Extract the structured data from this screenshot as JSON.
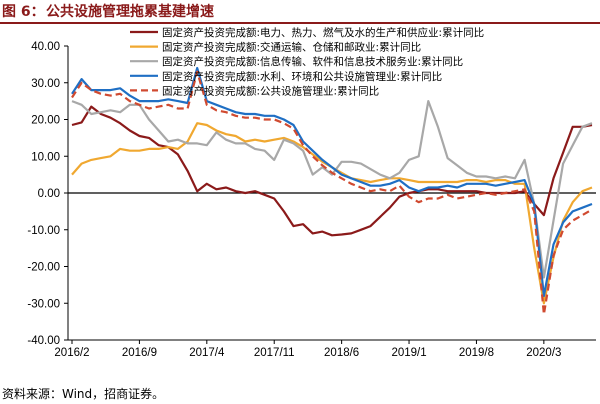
{
  "figure": {
    "label": "图 6：",
    "title": "公共设施管理拖累基建增速",
    "source": "资料来源：Wind，招商证券。"
  },
  "chart_data": {
    "type": "line",
    "ylim": [
      -40,
      40
    ],
    "yticks": [
      40,
      30,
      20,
      10,
      0,
      -10,
      -20,
      -30,
      -40
    ],
    "ytick_labels": [
      "40.00",
      "30.00",
      "20.00",
      "10.00",
      "0.00",
      "-10.00",
      "-20.00",
      "-30.00",
      "-40.00"
    ],
    "xtick_labels": [
      "2016/2",
      "2016/9",
      "2017/4",
      "2017/11",
      "2018/6",
      "2019/1",
      "2019/8",
      "2020/3"
    ],
    "xtick_index": [
      0,
      7,
      14,
      21,
      28,
      35,
      42,
      49
    ],
    "n_points": 55,
    "legend_position": "top-right",
    "grid": false,
    "series": [
      {
        "name": "固定资产投资完成额:电力、热力、燃气及水的生产和供应业:累计同比",
        "color": "#8b1a1a",
        "dash": "solid",
        "values": [
          18.5,
          19.2,
          23.5,
          21.5,
          20.5,
          19.0,
          17.0,
          15.5,
          15.0,
          13.0,
          12.5,
          10.5,
          6.0,
          0.5,
          2.5,
          1.0,
          1.5,
          0.5,
          0.0,
          0.5,
          -0.5,
          -1.5,
          -5.0,
          -9.0,
          -8.5,
          -11.0,
          -10.5,
          -11.5,
          -11.3,
          -11.0,
          -10.0,
          -9.0,
          -6.5,
          -4.0,
          -1.0,
          0.0,
          0.5,
          1.0,
          1.0,
          0.5,
          0.5,
          0.5,
          0.5,
          0.0,
          0.0,
          0.0,
          0.0,
          0.5,
          -3.0,
          -6.0,
          4.0,
          11.0,
          18.0,
          18.0,
          18.5
        ]
      },
      {
        "name": "固定资产投资完成额:交通运输、仓储和邮政业:累计同比",
        "color": "#f0a830",
        "dash": "solid",
        "values": [
          5.0,
          8.0,
          9.0,
          9.5,
          10.0,
          12.0,
          11.5,
          11.5,
          12.0,
          12.0,
          12.5,
          12.0,
          14.0,
          19.0,
          18.5,
          17.0,
          16.0,
          15.5,
          14.0,
          14.5,
          14.0,
          14.5,
          15.0,
          14.0,
          12.5,
          10.5,
          8.5,
          7.0,
          5.5,
          4.0,
          3.5,
          3.0,
          3.5,
          4.0,
          4.0,
          3.5,
          3.0,
          3.0,
          3.0,
          3.0,
          3.0,
          3.5,
          3.5,
          3.0,
          3.5,
          3.5,
          2.5,
          2.5,
          -15.0,
          -30.0,
          -17.5,
          -7.5,
          -2.5,
          0.5,
          1.5
        ]
      },
      {
        "name": "固定资产投资完成额:信息传输、软件和信息技术服务业:累计同比",
        "color": "#a8a8a8",
        "dash": "solid",
        "values": [
          25.0,
          24.0,
          21.5,
          22.0,
          22.5,
          22.0,
          24.0,
          24.0,
          20.0,
          17.0,
          14.0,
          14.5,
          13.5,
          13.5,
          13.0,
          16.5,
          14.5,
          13.5,
          13.5,
          12.0,
          11.5,
          9.0,
          14.5,
          13.5,
          11.5,
          5.0,
          7.0,
          5.0,
          8.5,
          8.5,
          8.0,
          6.5,
          5.0,
          4.0,
          5.5,
          9.0,
          10.0,
          25.0,
          18.0,
          9.5,
          7.5,
          5.5,
          4.5,
          4.5,
          4.0,
          4.5,
          4.0,
          9.0,
          -3.0,
          -23.0,
          -7.5,
          8.0,
          13.0,
          18.0,
          19.0
        ]
      },
      {
        "name": "固定资产投资完成额:水利、环境和公共设施管理业:累计同比",
        "color": "#1f6fc4",
        "dash": "solid",
        "values": [
          27.0,
          31.0,
          28.0,
          28.0,
          28.0,
          28.5,
          26.5,
          25.0,
          25.0,
          25.0,
          25.5,
          25.0,
          24.5,
          34.0,
          25.0,
          24.0,
          23.0,
          22.0,
          21.5,
          21.5,
          21.0,
          21.0,
          20.0,
          18.5,
          14.0,
          11.5,
          9.0,
          7.0,
          5.0,
          4.0,
          3.0,
          2.0,
          2.0,
          2.5,
          3.5,
          1.5,
          0.5,
          1.5,
          1.5,
          2.0,
          1.5,
          2.5,
          2.5,
          2.5,
          2.0,
          2.5,
          3.0,
          3.5,
          -3.0,
          -28.0,
          -14.0,
          -8.0,
          -5.0,
          -4.0,
          -3.0
        ]
      },
      {
        "name": "固定资产投资完成额:公共设施管理业:累计同比",
        "color": "#d04a30",
        "dash": "dashed",
        "values": [
          26.0,
          30.0,
          28.0,
          27.0,
          26.5,
          27.0,
          25.0,
          24.0,
          23.0,
          23.5,
          24.0,
          23.0,
          23.0,
          33.0,
          24.0,
          22.5,
          22.0,
          21.0,
          20.5,
          20.5,
          20.0,
          20.0,
          19.0,
          17.5,
          13.0,
          10.0,
          7.5,
          5.5,
          4.0,
          2.5,
          1.5,
          0.5,
          1.0,
          0.5,
          2.0,
          -1.0,
          -2.5,
          -1.5,
          -1.5,
          -0.5,
          -1.5,
          -1.0,
          -0.5,
          0.0,
          -0.5,
          0.0,
          0.5,
          1.0,
          -5.0,
          -33.0,
          -17.0,
          -10.0,
          -7.5,
          -6.0,
          -4.5
        ]
      }
    ]
  }
}
